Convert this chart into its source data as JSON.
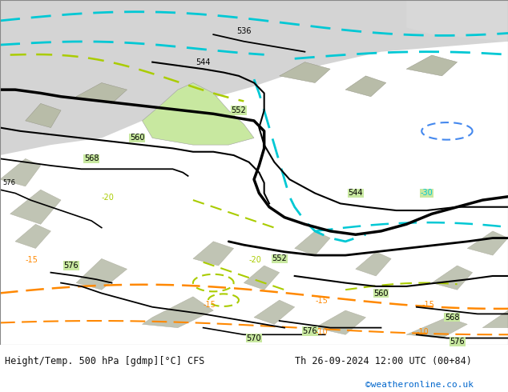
{
  "title_left": "Height/Temp. 500 hPa [gdmp][°C] CFS",
  "title_right": "Th 26-09-2024 12:00 UTC (00+84)",
  "credit": "©weatheronline.co.uk",
  "fig_width": 6.34,
  "fig_height": 4.9,
  "dpi": 100,
  "credit_color": "#0066cc",
  "text_color": "#111111",
  "bg_map_color": "#c8e8a0",
  "sea_color": "#d8d8d8",
  "land_gray_color": "#b8b8b8",
  "land_light_color": "#c0c8b0"
}
